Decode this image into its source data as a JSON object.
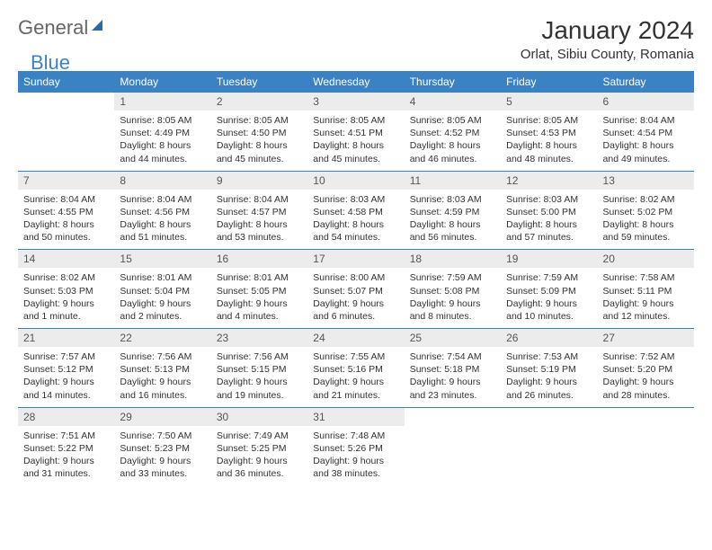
{
  "logo": {
    "textA": "General",
    "textB": "Blue"
  },
  "title": "January 2024",
  "location": "Orlat, Sibiu County, Romania",
  "colors": {
    "header_bg": "#3b82c4",
    "header_text": "#ffffff",
    "daynum_bg": "#ececec",
    "border": "#3b82c4",
    "body_text": "#333333"
  },
  "weekdays": [
    "Sunday",
    "Monday",
    "Tuesday",
    "Wednesday",
    "Thursday",
    "Friday",
    "Saturday"
  ],
  "weeks": [
    [
      null,
      {
        "n": "1",
        "sr": "8:05 AM",
        "ss": "4:49 PM",
        "dl": "8 hours and 44 minutes."
      },
      {
        "n": "2",
        "sr": "8:05 AM",
        "ss": "4:50 PM",
        "dl": "8 hours and 45 minutes."
      },
      {
        "n": "3",
        "sr": "8:05 AM",
        "ss": "4:51 PM",
        "dl": "8 hours and 45 minutes."
      },
      {
        "n": "4",
        "sr": "8:05 AM",
        "ss": "4:52 PM",
        "dl": "8 hours and 46 minutes."
      },
      {
        "n": "5",
        "sr": "8:05 AM",
        "ss": "4:53 PM",
        "dl": "8 hours and 48 minutes."
      },
      {
        "n": "6",
        "sr": "8:04 AM",
        "ss": "4:54 PM",
        "dl": "8 hours and 49 minutes."
      }
    ],
    [
      {
        "n": "7",
        "sr": "8:04 AM",
        "ss": "4:55 PM",
        "dl": "8 hours and 50 minutes."
      },
      {
        "n": "8",
        "sr": "8:04 AM",
        "ss": "4:56 PM",
        "dl": "8 hours and 51 minutes."
      },
      {
        "n": "9",
        "sr": "8:04 AM",
        "ss": "4:57 PM",
        "dl": "8 hours and 53 minutes."
      },
      {
        "n": "10",
        "sr": "8:03 AM",
        "ss": "4:58 PM",
        "dl": "8 hours and 54 minutes."
      },
      {
        "n": "11",
        "sr": "8:03 AM",
        "ss": "4:59 PM",
        "dl": "8 hours and 56 minutes."
      },
      {
        "n": "12",
        "sr": "8:03 AM",
        "ss": "5:00 PM",
        "dl": "8 hours and 57 minutes."
      },
      {
        "n": "13",
        "sr": "8:02 AM",
        "ss": "5:02 PM",
        "dl": "8 hours and 59 minutes."
      }
    ],
    [
      {
        "n": "14",
        "sr": "8:02 AM",
        "ss": "5:03 PM",
        "dl": "9 hours and 1 minute."
      },
      {
        "n": "15",
        "sr": "8:01 AM",
        "ss": "5:04 PM",
        "dl": "9 hours and 2 minutes."
      },
      {
        "n": "16",
        "sr": "8:01 AM",
        "ss": "5:05 PM",
        "dl": "9 hours and 4 minutes."
      },
      {
        "n": "17",
        "sr": "8:00 AM",
        "ss": "5:07 PM",
        "dl": "9 hours and 6 minutes."
      },
      {
        "n": "18",
        "sr": "7:59 AM",
        "ss": "5:08 PM",
        "dl": "9 hours and 8 minutes."
      },
      {
        "n": "19",
        "sr": "7:59 AM",
        "ss": "5:09 PM",
        "dl": "9 hours and 10 minutes."
      },
      {
        "n": "20",
        "sr": "7:58 AM",
        "ss": "5:11 PM",
        "dl": "9 hours and 12 minutes."
      }
    ],
    [
      {
        "n": "21",
        "sr": "7:57 AM",
        "ss": "5:12 PM",
        "dl": "9 hours and 14 minutes."
      },
      {
        "n": "22",
        "sr": "7:56 AM",
        "ss": "5:13 PM",
        "dl": "9 hours and 16 minutes."
      },
      {
        "n": "23",
        "sr": "7:56 AM",
        "ss": "5:15 PM",
        "dl": "9 hours and 19 minutes."
      },
      {
        "n": "24",
        "sr": "7:55 AM",
        "ss": "5:16 PM",
        "dl": "9 hours and 21 minutes."
      },
      {
        "n": "25",
        "sr": "7:54 AM",
        "ss": "5:18 PM",
        "dl": "9 hours and 23 minutes."
      },
      {
        "n": "26",
        "sr": "7:53 AM",
        "ss": "5:19 PM",
        "dl": "9 hours and 26 minutes."
      },
      {
        "n": "27",
        "sr": "7:52 AM",
        "ss": "5:20 PM",
        "dl": "9 hours and 28 minutes."
      }
    ],
    [
      {
        "n": "28",
        "sr": "7:51 AM",
        "ss": "5:22 PM",
        "dl": "9 hours and 31 minutes."
      },
      {
        "n": "29",
        "sr": "7:50 AM",
        "ss": "5:23 PM",
        "dl": "9 hours and 33 minutes."
      },
      {
        "n": "30",
        "sr": "7:49 AM",
        "ss": "5:25 PM",
        "dl": "9 hours and 36 minutes."
      },
      {
        "n": "31",
        "sr": "7:48 AM",
        "ss": "5:26 PM",
        "dl": "9 hours and 38 minutes."
      },
      null,
      null,
      null
    ]
  ],
  "labels": {
    "sunrise": "Sunrise:",
    "sunset": "Sunset:",
    "daylight": "Daylight:"
  }
}
